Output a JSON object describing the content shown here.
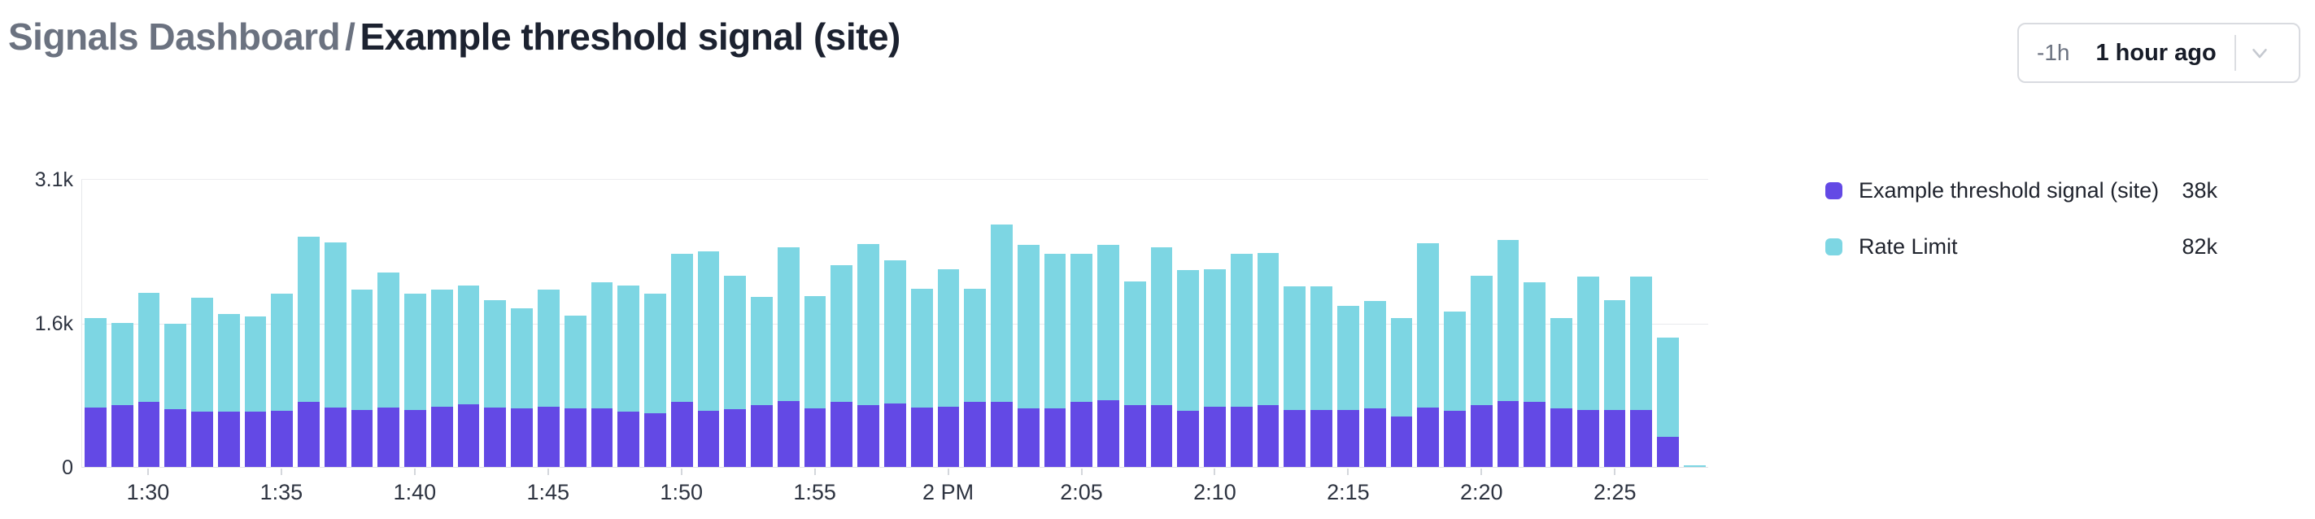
{
  "header": {
    "breadcrumb_root": "Signals Dashboard",
    "separator": "/",
    "signal_title": "Example threshold signal (site)"
  },
  "time_picker": {
    "shortcut": "-1h",
    "label": "1 hour ago",
    "chevron_icon": "chevron-down"
  },
  "legend": {
    "items": [
      {
        "label": "Example threshold signal (site)",
        "value": "38k",
        "color": "#6349E5"
      },
      {
        "label": "Rate Limit",
        "value": "82k",
        "color": "#7DD6E3"
      }
    ]
  },
  "chart_data": {
    "type": "bar",
    "stacked": true,
    "grid": "horizontal",
    "legend_position": "right",
    "ylim": [
      0,
      3100
    ],
    "yticks": [
      {
        "value": 3100,
        "label": "3.1k"
      },
      {
        "value": 1550,
        "label": "1.6k"
      },
      {
        "value": 0,
        "label": "0"
      }
    ],
    "xticks": {
      "labels": [
        "1:30",
        "1:35",
        "1:40",
        "1:45",
        "1:50",
        "1:55",
        "2 PM",
        "2:05",
        "2:10",
        "2:15",
        "2:20",
        "2:25"
      ],
      "indices": [
        2,
        7,
        12,
        17,
        22,
        27,
        32,
        37,
        42,
        47,
        52,
        57
      ]
    },
    "x": [
      "1:28",
      "1:29",
      "1:30",
      "1:31",
      "1:32",
      "1:33",
      "1:34",
      "1:35",
      "1:36",
      "1:37",
      "1:38",
      "1:39",
      "1:40",
      "1:41",
      "1:42",
      "1:43",
      "1:44",
      "1:45",
      "1:46",
      "1:47",
      "1:48",
      "1:49",
      "1:50",
      "1:51",
      "1:52",
      "1:53",
      "1:54",
      "1:55",
      "1:56",
      "1:57",
      "1:58",
      "1:59",
      "2:00",
      "2:01",
      "2:02",
      "2:03",
      "2:04",
      "2:05",
      "2:06",
      "2:07",
      "2:08",
      "2:09",
      "2:10",
      "2:11",
      "2:12",
      "2:13",
      "2:14",
      "2:15",
      "2:16",
      "2:17",
      "2:18",
      "2:19",
      "2:20",
      "2:21",
      "2:22",
      "2:23",
      "2:24",
      "2:25",
      "2:26",
      "2:27",
      "2:28"
    ],
    "series": [
      {
        "name": "Example threshold signal (site)",
        "color": "#6349E5",
        "total_label": "38k",
        "values": [
          640,
          660,
          700,
          620,
          590,
          590,
          590,
          600,
          700,
          640,
          615,
          640,
          615,
          645,
          675,
          640,
          630,
          650,
          625,
          630,
          590,
          580,
          695,
          600,
          620,
          660,
          710,
          630,
          700,
          665,
          685,
          640,
          650,
          700,
          700,
          630,
          630,
          695,
          720,
          660,
          665,
          600,
          650,
          650,
          660,
          615,
          615,
          615,
          630,
          545,
          640,
          600,
          660,
          710,
          695,
          630,
          615,
          615,
          615,
          325,
          0
        ]
      },
      {
        "name": "Rate Limit",
        "color": "#7DD6E3",
        "total_label": "82k",
        "values": [
          960,
          890,
          1170,
          920,
          1230,
          1050,
          1030,
          1260,
          1770,
          1770,
          1290,
          1450,
          1245,
          1260,
          1275,
          1150,
          1070,
          1255,
          1000,
          1355,
          1360,
          1280,
          1595,
          1710,
          1430,
          1165,
          1645,
          1205,
          1470,
          1725,
          1530,
          1275,
          1475,
          1215,
          1900,
          1750,
          1660,
          1595,
          1660,
          1335,
          1695,
          1515,
          1475,
          1640,
          1640,
          1325,
          1325,
          1115,
          1150,
          1055,
          1760,
          1070,
          1395,
          1730,
          1290,
          970,
          1430,
          1175,
          1430,
          1065,
          20
        ]
      }
    ]
  }
}
